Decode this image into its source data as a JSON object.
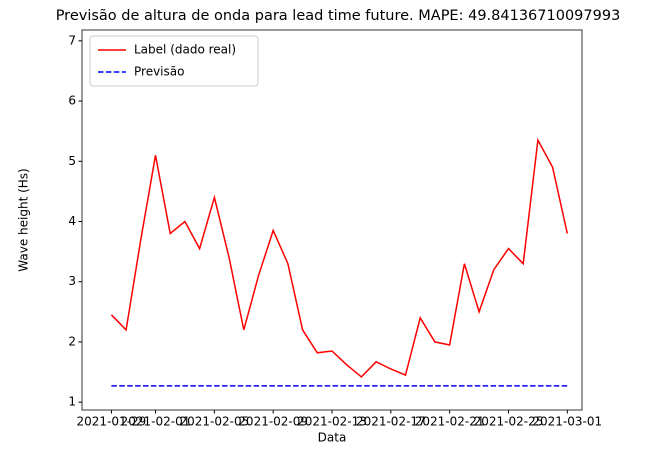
{
  "chart_data": {
    "type": "line",
    "title": "Previsão de altura de onda para lead time future. MAPE: 49.84136710097993",
    "xlabel": "Data",
    "ylabel": "Wave height (Hs)",
    "x": [
      "2021-01-29",
      "2021-01-30",
      "2021-01-31",
      "2021-02-01",
      "2021-02-02",
      "2021-02-03",
      "2021-02-04",
      "2021-02-05",
      "2021-02-06",
      "2021-02-07",
      "2021-02-08",
      "2021-02-09",
      "2021-02-10",
      "2021-02-11",
      "2021-02-12",
      "2021-02-13",
      "2021-02-14",
      "2021-02-15",
      "2021-02-16",
      "2021-02-17",
      "2021-02-18",
      "2021-02-19",
      "2021-02-20",
      "2021-02-21",
      "2021-02-22",
      "2021-02-23",
      "2021-02-24",
      "2021-02-25",
      "2021-02-26",
      "2021-02-27",
      "2021-02-28",
      "2021-03-01"
    ],
    "series": [
      {
        "name": "Label (dado real)",
        "color": "#ff0000",
        "dash": false,
        "values": [
          2.45,
          2.2,
          3.7,
          5.1,
          3.8,
          4.0,
          3.55,
          4.4,
          3.4,
          2.2,
          3.1,
          3.85,
          3.3,
          2.2,
          1.82,
          1.85,
          1.62,
          1.42,
          1.67,
          1.55,
          1.45,
          2.4,
          2.0,
          1.95,
          3.3,
          2.5,
          3.2,
          3.55,
          3.3,
          5.35,
          4.9,
          3.8
        ]
      },
      {
        "name": "Previsão",
        "color": "#0000ff",
        "dash": true,
        "values": [
          1.27,
          1.27,
          1.27,
          1.27,
          1.27,
          1.27,
          1.27,
          1.27,
          1.27,
          1.27,
          1.27,
          1.27,
          1.27,
          1.27,
          1.27,
          1.27,
          1.27,
          1.27,
          1.27,
          1.27,
          1.27,
          1.27,
          1.27,
          1.27,
          1.27,
          1.27,
          1.27,
          1.27,
          1.27,
          1.27,
          1.27,
          1.27
        ]
      }
    ],
    "xlim": [
      "2021-01-27",
      "2021-03-02"
    ],
    "xticks": [
      "2021-01-29",
      "2021-02-01",
      "2021-02-05",
      "2021-02-09",
      "2021-02-13",
      "2021-02-17",
      "2021-02-21",
      "2021-02-25",
      "2021-03-01"
    ],
    "ylim": [
      0.87,
      7.18
    ],
    "yticks": [
      1,
      2,
      3,
      4,
      5,
      6,
      7
    ],
    "legend": "upper-left"
  }
}
